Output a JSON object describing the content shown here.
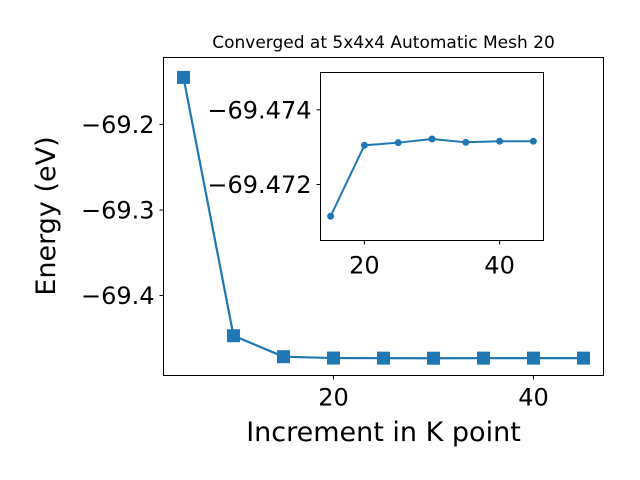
{
  "chart_data": [
    {
      "type": "line",
      "title": "Converged at 5x4x4 Automatic Mesh 20",
      "xlabel": "Increment in K point",
      "ylabel": "Energy (eV)",
      "x": [
        5,
        10,
        15,
        20,
        25,
        30,
        35,
        40,
        45
      ],
      "series": [
        {
          "values": [
            -69.145,
            -69.447,
            -69.4715,
            -69.4731,
            -69.4732,
            -69.4733,
            -69.4732,
            -69.4732,
            -69.4732
          ],
          "marker": "square",
          "color": "#1f77b4"
        }
      ],
      "xlim": [
        3.0,
        47.0
      ],
      "ylim": [
        -69.4935,
        -69.1217
      ],
      "xticks": [
        20,
        40
      ],
      "xtick_labels": [
        "20",
        "40"
      ],
      "yticks": [
        -69.2,
        -69.3,
        -69.4
      ],
      "ytick_labels": [
        "−69.2",
        "−69.3",
        "−69.4"
      ],
      "grid": false,
      "legend": "none"
    },
    {
      "type": "line",
      "title": "",
      "xlabel": "",
      "ylabel": "",
      "x": [
        15,
        20,
        25,
        30,
        35,
        40,
        45
      ],
      "series": [
        {
          "values": [
            -69.47115,
            -69.47305,
            -69.47312,
            -69.47322,
            -69.47313,
            -69.47316,
            -69.47316
          ],
          "marker": "circle",
          "color": "#1f77b4"
        }
      ],
      "xlim": [
        13.5,
        46.5
      ],
      "ylim": [
        -69.4705,
        -69.475
      ],
      "inverted_y": true,
      "xticks": [
        20,
        40
      ],
      "xtick_labels": [
        "20",
        "40"
      ],
      "yticks": [
        -69.472,
        -69.474
      ],
      "ytick_labels": [
        "−69.472",
        "−69.474"
      ],
      "grid": false,
      "legend": "none"
    }
  ]
}
